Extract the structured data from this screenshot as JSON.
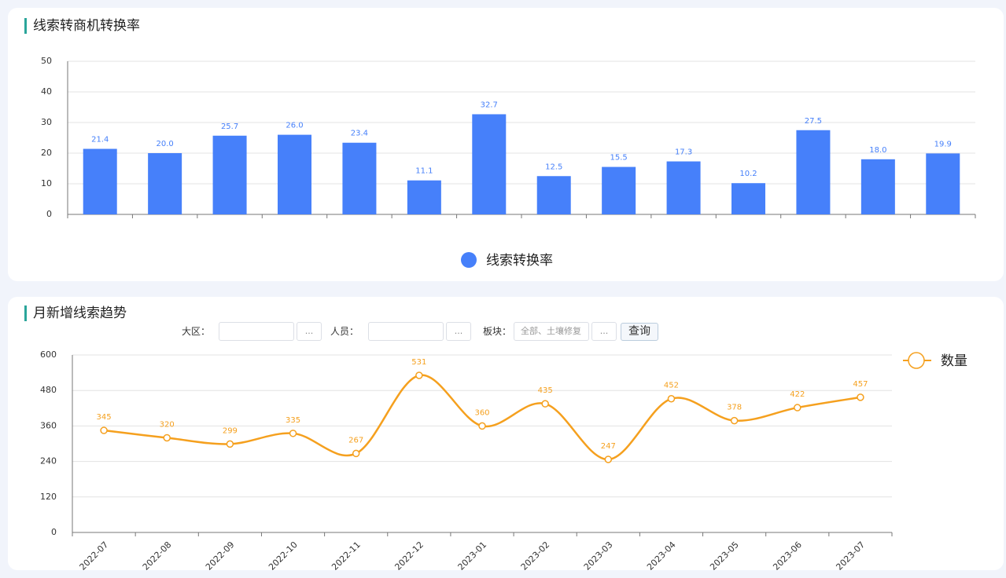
{
  "chart_data": [
    {
      "type": "bar",
      "title": "线索转商机转换率",
      "categories": [
        null,
        null,
        null,
        null,
        null,
        null,
        null,
        null,
        null,
        null,
        null,
        null,
        null,
        null
      ],
      "series": [
        {
          "name": "线索转换率",
          "color": "#4680fa",
          "values": [
            21.4,
            20.0,
            25.7,
            26.0,
            23.4,
            11.1,
            32.7,
            12.5,
            15.5,
            17.3,
            10.2,
            27.5,
            18.0,
            19.9
          ],
          "value_labels": [
            "21.4",
            "20.0",
            "25.7",
            "26.0",
            "23.4",
            "11.1",
            "32.7",
            "12.5",
            "15.5",
            "17.3",
            "10.2",
            "27.5",
            "18.0",
            "19.9"
          ]
        }
      ],
      "ylim": [
        0,
        50
      ],
      "yticks": [
        0,
        10,
        20,
        30,
        40,
        50
      ],
      "grid": true,
      "legend": "bottom"
    },
    {
      "type": "line",
      "title": "月新增线索趋势",
      "categories": [
        "2022-07",
        "2022-08",
        "2022-09",
        "2022-10",
        "2022-11",
        "2022-12",
        "2023-01",
        "2023-02",
        "2023-03",
        "2023-04",
        "2023-05",
        "2023-06",
        "2023-07"
      ],
      "series": [
        {
          "name": "数量",
          "color": "#f5a01e",
          "values": [
            345,
            320,
            299,
            335,
            267,
            531,
            360,
            435,
            247,
            452,
            378,
            422,
            457
          ]
        }
      ],
      "ylim": [
        0,
        600
      ],
      "yticks": [
        0,
        120,
        240,
        360,
        480,
        600
      ],
      "grid": true,
      "smooth": true,
      "legend": "top-right"
    }
  ],
  "filters": {
    "fields": [
      {
        "label": "大区：",
        "button": "..."
      },
      {
        "label": "人员：",
        "button": "..."
      },
      {
        "label": "板块：",
        "placeholder": "全部、土壤修复",
        "button": "..."
      }
    ],
    "submit": "查询"
  }
}
